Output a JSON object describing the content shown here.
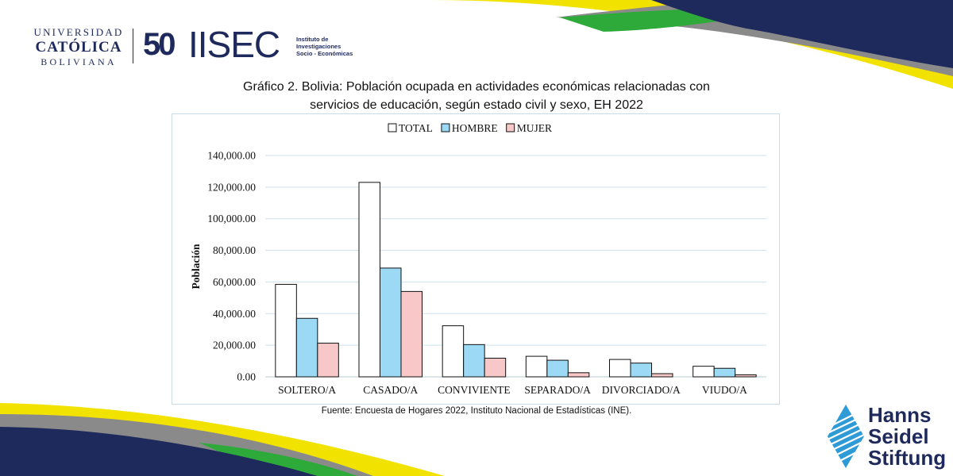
{
  "branding": {
    "ucb_line1": "UNIVERSIDAD",
    "ucb_line2": "CATÓLICA",
    "ucb_line3": "BOLIVIANA",
    "anniversary": "50",
    "iisec_name": "IISEC",
    "iisec_subtitle_1": "Instituto de",
    "iisec_subtitle_2": "Investigaciones",
    "iisec_subtitle_3": "Socio - Económicas",
    "hss_line1": "Hanns",
    "hss_line2": "Seidel",
    "hss_line3": "Stiftung"
  },
  "colors": {
    "navy": "#1f2a5c",
    "yellow": "#f2e200",
    "green": "#2eaa3a",
    "gray": "#8a8a8a",
    "hss_blue": "#2f9bd6"
  },
  "title_line1": "Gráfico 2. Bolivia: Población ocupada en actividades económicas relacionadas con",
  "title_line2": "servicios de educación, según estado civil y sexo, EH 2022",
  "source": "Fuente: Encuesta de Hogares 2022, Instituto Nacional de Estadísticas (INE).",
  "chart_data": {
    "type": "bar",
    "title": "",
    "xlabel": "",
    "ylabel": "Población",
    "ylim": [
      0,
      140000
    ],
    "yticks": [
      "0.00",
      "20,000.00",
      "40,000.00",
      "60,000.00",
      "80,000.00",
      "100,000.00",
      "120,000.00",
      "140,000.00"
    ],
    "grid": true,
    "legend_position": "top",
    "categories": [
      "SOLTERO/A",
      "CASADO/A",
      "CONVIVIENTE",
      "SEPARADO/A",
      "DIVORCIADO/A",
      "VIUDO/A"
    ],
    "series": [
      {
        "name": "TOTAL",
        "color": "#ffffff",
        "values": [
          58500,
          123000,
          32300,
          13000,
          11000,
          6700
        ]
      },
      {
        "name": "HOMBRE",
        "color": "#9bd9f4",
        "values": [
          37000,
          68800,
          20400,
          10500,
          8700,
          5400
        ]
      },
      {
        "name": "MUJER",
        "color": "#f8c7c7",
        "values": [
          21300,
          54000,
          11800,
          2600,
          2000,
          1300
        ]
      }
    ]
  }
}
